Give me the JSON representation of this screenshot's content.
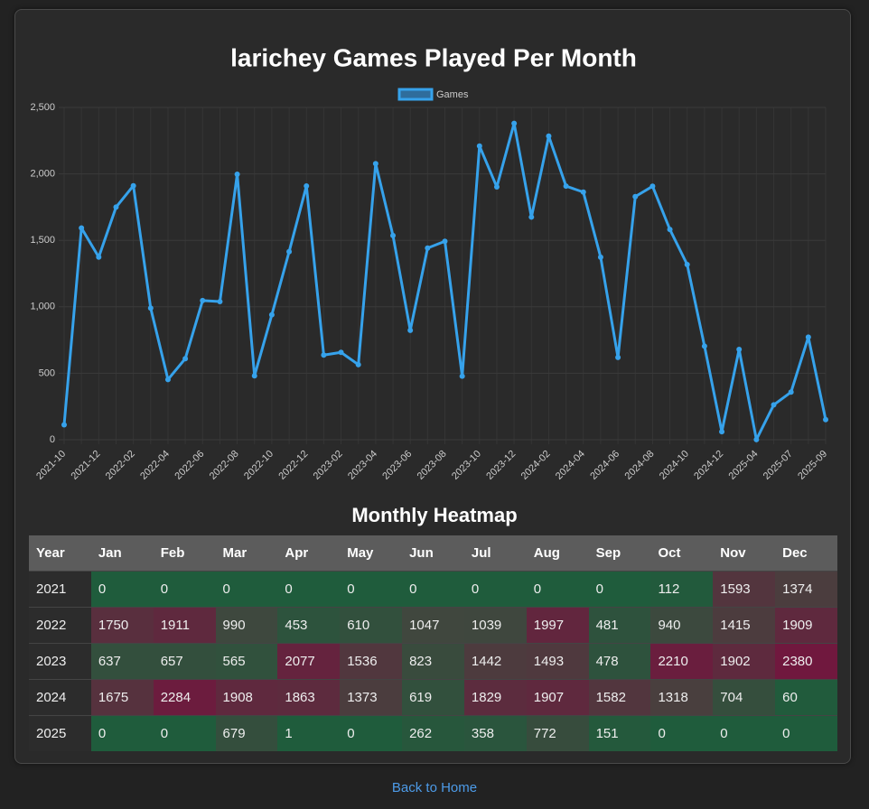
{
  "chart_data": {
    "type": "line",
    "title": "larichey Games Played Per Month",
    "categories": [
      "2021-10",
      null,
      "2021-12",
      null,
      "2022-02",
      null,
      "2022-04",
      null,
      "2022-06",
      null,
      "2022-08",
      null,
      "2022-10",
      null,
      "2022-12",
      null,
      "2023-02",
      null,
      "2023-04",
      null,
      "2023-06",
      null,
      "2023-08",
      null,
      "2023-10",
      null,
      "2023-12",
      null,
      "2024-02",
      null,
      "2024-04",
      null,
      "2024-06",
      null,
      "2024-08",
      null,
      "2024-10",
      null,
      "2024-12",
      null,
      "2025-04",
      null,
      "2025-07",
      null,
      "2025-09"
    ],
    "series": [
      {
        "name": "Games",
        "color": "#36a2eb",
        "values": [
          112,
          1593,
          1374,
          1750,
          1911,
          990,
          453,
          610,
          1047,
          1039,
          1997,
          481,
          940,
          1415,
          1909,
          637,
          657,
          565,
          2077,
          1536,
          823,
          1442,
          1493,
          478,
          2210,
          1902,
          2380,
          1675,
          2284,
          1908,
          1863,
          1373,
          619,
          1829,
          1907,
          1582,
          1318,
          704,
          60,
          679,
          1,
          262,
          358,
          772,
          151
        ]
      }
    ],
    "ylim": [
      0,
      2500
    ],
    "yticks": [
      0,
      500,
      {
        "value": 1000,
        "label": "1,000"
      },
      {
        "value": 1500,
        "label": "1,500"
      },
      {
        "value": 2000,
        "label": "2,000"
      },
      {
        "value": 2500,
        "label": "2,500"
      }
    ],
    "grid": true,
    "legend": "top"
  },
  "table": {
    "title": "Monthly Heatmap",
    "header": [
      "Year",
      "Jan",
      "Feb",
      "Mar",
      "Apr",
      "May",
      "Jun",
      "Jul",
      "Aug",
      "Sep",
      "Oct",
      "Nov",
      "Dec"
    ],
    "rows": [
      [
        2021,
        0,
        0,
        0,
        0,
        0,
        0,
        0,
        0,
        0,
        112,
        1593,
        1374
      ],
      [
        2022,
        1750,
        1911,
        990,
        453,
        610,
        1047,
        1039,
        1997,
        481,
        940,
        1415,
        1909
      ],
      [
        2023,
        637,
        657,
        565,
        2077,
        1536,
        823,
        1442,
        1493,
        478,
        2210,
        1902,
        2380
      ],
      [
        2024,
        1675,
        2284,
        1908,
        1863,
        1373,
        619,
        1829,
        1907,
        1582,
        1318,
        704,
        60
      ],
      [
        2025,
        0,
        0,
        679,
        1,
        0,
        262,
        358,
        772,
        151,
        0,
        0,
        0
      ]
    ]
  },
  "link": "Back to Home"
}
